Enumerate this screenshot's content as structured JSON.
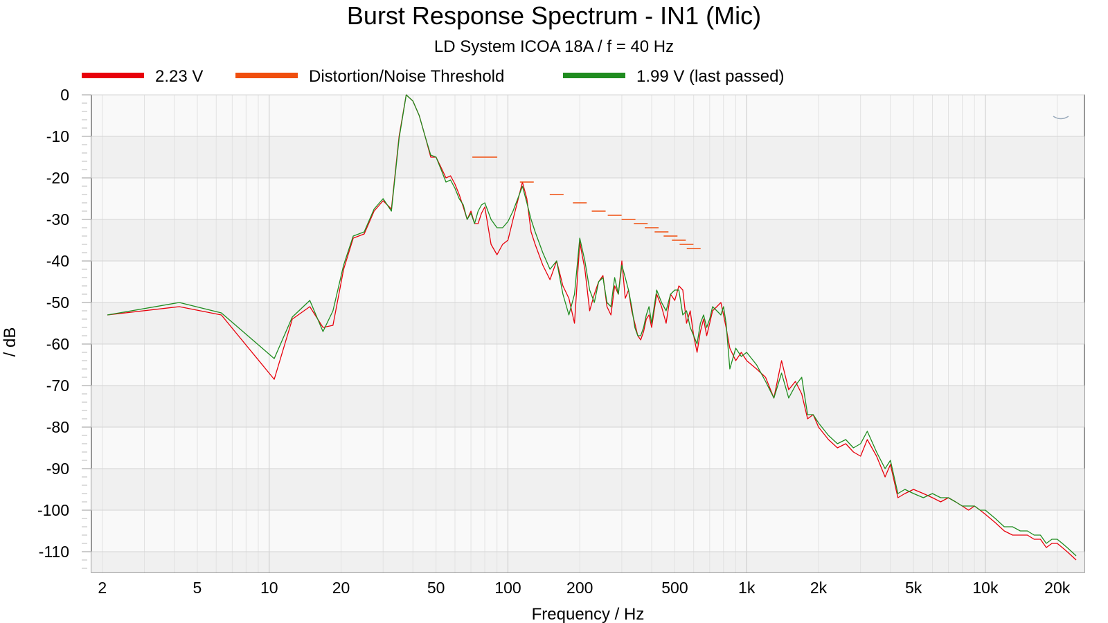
{
  "chart_data": {
    "type": "line",
    "title": "Burst Response Spectrum - IN1 (Mic)",
    "subtitle": "LD System ICOA 18A / f = 40 Hz",
    "xlabel": "Frequency / Hz",
    "ylabel": "/ dB",
    "x_scale": "log",
    "xlim": [
      1.8,
      26000
    ],
    "ylim": [
      -115,
      0
    ],
    "x_ticks": [
      {
        "v": 2,
        "label": "2"
      },
      {
        "v": 5,
        "label": "5"
      },
      {
        "v": 10,
        "label": "10"
      },
      {
        "v": 20,
        "label": "20"
      },
      {
        "v": 50,
        "label": "50"
      },
      {
        "v": 100,
        "label": "100"
      },
      {
        "v": 200,
        "label": "200"
      },
      {
        "v": 500,
        "label": "500"
      },
      {
        "v": 1000,
        "label": "1k"
      },
      {
        "v": 2000,
        "label": "2k"
      },
      {
        "v": 5000,
        "label": "5k"
      },
      {
        "v": 10000,
        "label": "10k"
      },
      {
        "v": 20000,
        "label": "20k"
      }
    ],
    "y_ticks": [
      {
        "v": 0,
        "label": "0"
      },
      {
        "v": -10,
        "label": "-10"
      },
      {
        "v": -20,
        "label": "-20"
      },
      {
        "v": -30,
        "label": "-30"
      },
      {
        "v": -40,
        "label": "-40"
      },
      {
        "v": -50,
        "label": "-50"
      },
      {
        "v": -60,
        "label": "-60"
      },
      {
        "v": -70,
        "label": "-70"
      },
      {
        "v": -80,
        "label": "-80"
      },
      {
        "v": -90,
        "label": "-90"
      },
      {
        "v": -100,
        "label": "-100"
      },
      {
        "v": -110,
        "label": "-110"
      }
    ],
    "grid": true,
    "legend_position": "top",
    "series": [
      {
        "name": "2.23 V",
        "color": "#e8000b",
        "style": "line",
        "x": [
          2.1,
          4.2,
          6.3,
          10.5,
          12.5,
          14.8,
          16.8,
          18.5,
          20.5,
          22.5,
          25,
          27.5,
          30,
          32.5,
          35,
          37.5,
          40,
          42.5,
          45,
          47.5,
          50,
          52.5,
          55,
          57.5,
          60,
          62.5,
          65,
          67.5,
          70,
          72.5,
          75,
          77.5,
          80,
          85,
          90,
          95,
          100,
          105,
          110,
          115,
          120,
          125,
          130,
          140,
          150,
          160,
          170,
          180,
          190,
          200,
          210,
          220,
          230,
          240,
          250,
          260,
          270,
          280,
          290,
          300,
          310,
          320,
          330,
          340,
          350,
          360,
          370,
          380,
          390,
          400,
          420,
          440,
          460,
          480,
          500,
          520,
          540,
          560,
          580,
          600,
          620,
          640,
          660,
          680,
          700,
          720,
          750,
          780,
          800,
          820,
          850,
          900,
          950,
          1000,
          1100,
          1200,
          1300,
          1400,
          1500,
          1600,
          1700,
          1800,
          1900,
          2000,
          2200,
          2400,
          2600,
          2800,
          3000,
          3200,
          3500,
          3800,
          4000,
          4300,
          4600,
          5000,
          5500,
          6000,
          6500,
          7000,
          7500,
          8000,
          8500,
          9000,
          9500,
          10000,
          11000,
          12000,
          13000,
          14000,
          15000,
          16000,
          17000,
          18000,
          19000,
          20000,
          21000,
          22000,
          23000,
          24000
        ],
        "y": [
          -53,
          -51,
          -53,
          -68.5,
          -54,
          -51,
          -56,
          -55.5,
          -42,
          -34.5,
          -33.5,
          -28,
          -25.5,
          -27.5,
          -10,
          0,
          -1.5,
          -5,
          -10,
          -15,
          -15,
          -17.5,
          -20,
          -19.5,
          -21.5,
          -24,
          -27,
          -30,
          -28,
          -31,
          -31,
          -28.5,
          -27,
          -36,
          -38.5,
          -36,
          -35,
          -30,
          -25.5,
          -21,
          -25,
          -33,
          -36,
          -41,
          -44.5,
          -40,
          -46,
          -49,
          -55,
          -35.5,
          -42,
          -52,
          -48,
          -45,
          -43.5,
          -51,
          -53,
          -46,
          -48,
          -40,
          -49,
          -47,
          -52,
          -55,
          -58,
          -59,
          -57,
          -54,
          -53,
          -56,
          -48,
          -51,
          -55,
          -48,
          -49.5,
          -46,
          -47,
          -55,
          -52,
          -58,
          -62,
          -57,
          -54,
          -58,
          -55,
          -52,
          -51,
          -50,
          -53,
          -56,
          -61,
          -64,
          -62,
          -64,
          -66,
          -68,
          -73,
          -64,
          -71,
          -69,
          -72,
          -78,
          -77,
          -80,
          -83,
          -85,
          -84,
          -86,
          -87,
          -83,
          -87,
          -92,
          -89,
          -97,
          -96,
          -95,
          -96,
          -97,
          -98,
          -97,
          -98,
          -99,
          -100,
          -99,
          -100,
          -101,
          -103,
          -105,
          -106,
          -106,
          -106,
          -107,
          -107,
          -109,
          -108,
          -108,
          -109,
          -110,
          -111,
          -112
        ]
      },
      {
        "name": "Distortion/Noise Threshold",
        "color": "#f04e0e",
        "style": "segments",
        "x": [
          80,
          120,
          160,
          200,
          240,
          280,
          320,
          360,
          400,
          440,
          480,
          520,
          560,
          600
        ],
        "y": [
          -15,
          -21,
          -24,
          -26,
          -28,
          -29,
          -30,
          -31,
          -32,
          -33,
          -34,
          -35,
          -36,
          -37
        ]
      },
      {
        "name": "1.99 V (last passed)",
        "color": "#1f8c1f",
        "style": "line",
        "x": [
          2.1,
          4.2,
          6.3,
          10.5,
          12.5,
          14.8,
          16.8,
          18.5,
          20.5,
          22.5,
          25,
          27.5,
          30,
          32.5,
          35,
          37.5,
          40,
          42.5,
          45,
          47.5,
          50,
          52.5,
          55,
          57.5,
          60,
          62.5,
          65,
          67.5,
          70,
          72.5,
          75,
          77.5,
          80,
          85,
          90,
          95,
          100,
          105,
          110,
          115,
          120,
          125,
          130,
          140,
          150,
          160,
          170,
          180,
          190,
          200,
          210,
          220,
          230,
          240,
          250,
          260,
          270,
          280,
          290,
          300,
          310,
          320,
          330,
          340,
          350,
          360,
          370,
          380,
          390,
          400,
          420,
          440,
          460,
          480,
          500,
          520,
          540,
          560,
          580,
          600,
          620,
          640,
          660,
          680,
          700,
          720,
          750,
          780,
          800,
          820,
          850,
          900,
          950,
          1000,
          1100,
          1200,
          1300,
          1400,
          1500,
          1600,
          1700,
          1800,
          1900,
          2000,
          2200,
          2400,
          2600,
          2800,
          3000,
          3200,
          3500,
          3800,
          4000,
          4300,
          4600,
          5000,
          5500,
          6000,
          6500,
          7000,
          7500,
          8000,
          8500,
          9000,
          9500,
          10000,
          11000,
          12000,
          13000,
          14000,
          15000,
          16000,
          17000,
          18000,
          19000,
          20000,
          21000,
          22000,
          23000,
          24000
        ],
        "y": [
          -53,
          -50,
          -52.5,
          -63.5,
          -53.5,
          -49.5,
          -57,
          -52,
          -41,
          -34,
          -33,
          -27.5,
          -25,
          -28,
          -10.5,
          0,
          -1.5,
          -5,
          -10,
          -14.5,
          -15,
          -18,
          -21,
          -20.5,
          -22.5,
          -25,
          -26.5,
          -30,
          -28.5,
          -31,
          -28,
          -26.5,
          -26,
          -30,
          -32,
          -32,
          -30.5,
          -28,
          -25,
          -22,
          -26,
          -30,
          -33,
          -38,
          -42,
          -40,
          -48,
          -53,
          -48,
          -34.5,
          -40,
          -47,
          -50,
          -45,
          -44,
          -50,
          -51,
          -44,
          -48,
          -41,
          -44,
          -47,
          -51,
          -56,
          -58,
          -58,
          -56,
          -53,
          -51,
          -55,
          -47,
          -50,
          -52,
          -48,
          -47,
          -47,
          -53,
          -52,
          -56,
          -58,
          -60,
          -55,
          -53,
          -56,
          -54,
          -51,
          -52,
          -53,
          -51,
          -55,
          -66,
          -61,
          -63,
          -62,
          -65,
          -69,
          -73,
          -67,
          -73,
          -70,
          -68,
          -77,
          -77,
          -79,
          -82,
          -84,
          -83,
          -85,
          -84,
          -81,
          -86,
          -90,
          -88,
          -96,
          -95,
          -96,
          -97,
          -96,
          -97,
          -97,
          -98,
          -99,
          -99,
          -99,
          -100,
          -100,
          -102,
          -104,
          -104,
          -105,
          -105,
          -106,
          -106,
          -108,
          -107,
          -107,
          -108,
          -109,
          -110,
          -111
        ]
      }
    ]
  }
}
